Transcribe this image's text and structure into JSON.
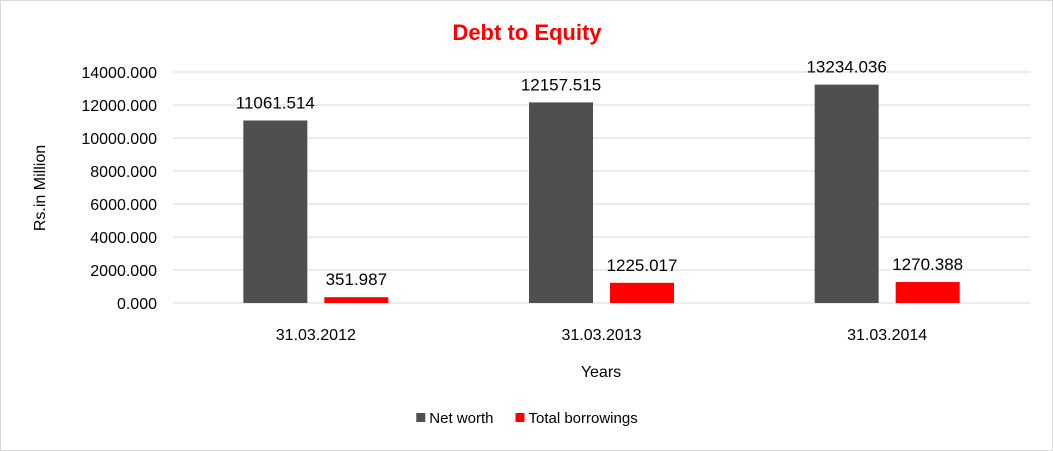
{
  "chart_data": {
    "type": "bar",
    "title": "Debt to Equity",
    "title_color": "#ff0000",
    "xlabel": "Years",
    "ylabel": "Rs.in Million",
    "categories": [
      "31.03.2012",
      "31.03.2013",
      "31.03.2014"
    ],
    "series": [
      {
        "name": "Net worth",
        "color": "#4f4f4f",
        "values": [
          11061.514,
          12157.515,
          13234.036
        ],
        "labels": [
          "11061.514",
          "12157.515",
          "13234.036"
        ]
      },
      {
        "name": "Total borrowings",
        "color": "#ff0000",
        "values": [
          351.987,
          1225.017,
          1270.388
        ],
        "labels": [
          "351.987",
          "1225.017",
          "1270.388"
        ]
      }
    ],
    "ylim": [
      0,
      14000
    ],
    "yticks": [
      0,
      2000,
      4000,
      6000,
      8000,
      10000,
      12000,
      14000
    ],
    "ytick_labels": [
      "0.000",
      "2000.000",
      "4000.000",
      "6000.000",
      "8000.000",
      "10000.000",
      "12000.000",
      "14000.000"
    ],
    "grid": true,
    "legend_position": "bottom-center"
  }
}
